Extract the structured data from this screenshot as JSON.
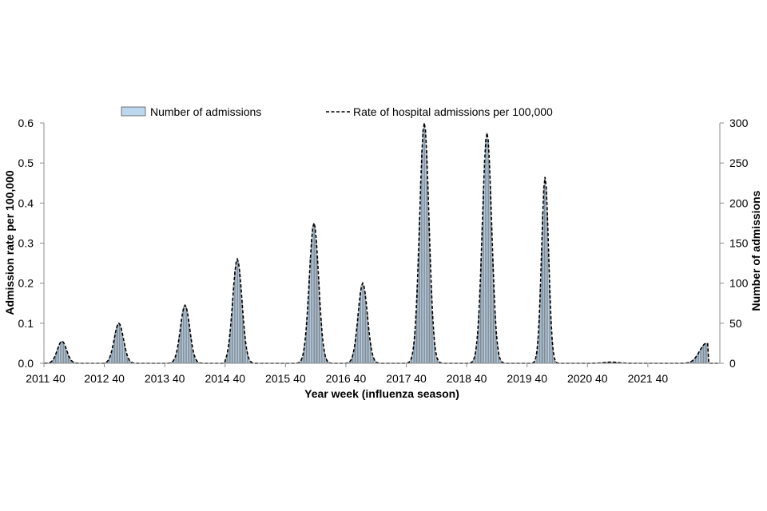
{
  "chart_data": {
    "type": "bar+line",
    "title": "",
    "xlabel": "Year week (influenza season)",
    "ylabel_left": "Admission rate per 100,000",
    "ylabel_right": "Number of admissions",
    "ylim_left": [
      0,
      0.6
    ],
    "ylim_right": [
      0,
      300
    ],
    "yticks_left": [
      "0.0",
      "0.1",
      "0.2",
      "0.3",
      "0.4",
      "0.5",
      "0.6"
    ],
    "yticks_right": [
      "0",
      "50",
      "100",
      "150",
      "200",
      "250",
      "300"
    ],
    "xticks": [
      "2011 40",
      "2012 40",
      "2013 40",
      "2014 40",
      "2015 40",
      "2016 40",
      "2017 40",
      "2018 40",
      "2019 40",
      "2020 40",
      "2021 40"
    ],
    "weeks_per_season": 52,
    "total_weeks": 582,
    "grid": false,
    "legend_position": "top",
    "series": [
      {
        "name": "Number of admissions",
        "type": "bar",
        "axis": "right",
        "color": "#bdd7ee",
        "edge_color": "#555555"
      },
      {
        "name": "Rate of hospital admissions per 100,000",
        "type": "line",
        "axis": "left",
        "color": "#000000",
        "style": "dashed"
      }
    ],
    "season_peaks": [
      {
        "season": "2011 40",
        "peak_week": 15,
        "peak_rate": 0.055,
        "comment": "small peak"
      },
      {
        "season": "2012 40",
        "peak_week": 12,
        "peak_rate": 0.1
      },
      {
        "season": "2013 40",
        "peak_week": 17,
        "peak_rate": 0.145
      },
      {
        "season": "2014 40",
        "peak_week": 10,
        "peak_rate": 0.26
      },
      {
        "season": "2015 40",
        "peak_week": 24,
        "peak_rate": 0.35
      },
      {
        "season": "2016 40",
        "peak_week": 14,
        "peak_rate": 0.2
      },
      {
        "season": "2017 40",
        "peak_week": 15,
        "peak_rate": 0.6
      },
      {
        "season": "2018 40",
        "peak_week": 17,
        "peak_rate": 0.575
      },
      {
        "season": "2019 40",
        "peak_week": 15,
        "peak_rate": 0.465
      },
      {
        "season": "2020 40",
        "peak_week": 20,
        "peak_rate": 0.003
      },
      {
        "season": "2021 40",
        "peak_week": 50,
        "peak_rate": 0.05
      }
    ]
  }
}
